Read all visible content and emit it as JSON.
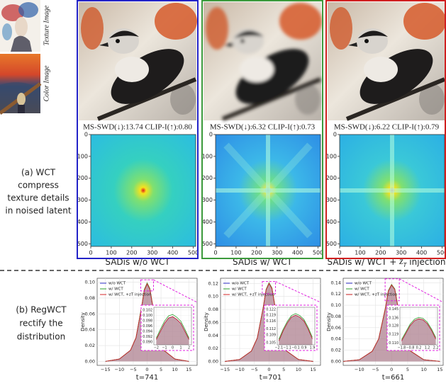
{
  "inputs": {
    "texture_label": "Texture Image",
    "color_label": "Color Image"
  },
  "row_a_label": [
    "(a) WCT",
    "compress",
    "texture details",
    "in noised latent"
  ],
  "row_b_label": [
    "(b) RegWCT",
    "rectify the",
    "distribution"
  ],
  "panels": [
    {
      "caption": "MS-SWD(↓):13.74 CLIP-I(↑):0.80",
      "border": "#2323c8",
      "xlim": [
        0,
        512
      ],
      "ylim": [
        512,
        0
      ],
      "xticks": [
        0,
        100,
        200,
        300,
        400,
        500
      ],
      "yticks": [
        0,
        100,
        200,
        300,
        400,
        500
      ],
      "xlabel": [
        "SADis w/o WCT"
      ]
    },
    {
      "caption": "MS-SWD(↓):6.32 CLIP-I(↑):0.73",
      "border": "#3c9a3c",
      "xlim": [
        0,
        512
      ],
      "ylim": [
        512,
        0
      ],
      "xticks": [
        0,
        100,
        200,
        300,
        400,
        500
      ],
      "yticks": [
        0,
        100,
        200,
        300,
        400,
        500
      ],
      "xlabel": [
        "SADis w/ WCT"
      ]
    },
    {
      "caption": "MS-SWD(↓):6.22 CLIP-I(↑):0.79",
      "border": "#d02020",
      "xlim": [
        0,
        512
      ],
      "ylim": [
        512,
        0
      ],
      "xticks": [
        0,
        100,
        200,
        300,
        400,
        500
      ],
      "yticks": [
        0,
        100,
        200,
        300,
        400,
        500
      ],
      "xlabel": [
        "SADis w/ WCT + ",
        "z",
        "T",
        " injection"
      ]
    }
  ],
  "chart_data": [
    {
      "type": "line",
      "xlabel": "t=741",
      "ylabel": "Density",
      "x": [
        -15,
        -10,
        -6,
        -4,
        -2,
        -1,
        0,
        1,
        2,
        4,
        6,
        10,
        15
      ],
      "xlim": [
        -18,
        18
      ],
      "ylim": [
        -0.005,
        0.105
      ],
      "xticks": [
        {
          "value": -15,
          "label": "−15"
        },
        {
          "value": -10,
          "label": "−10"
        },
        {
          "value": -5,
          "label": "−5"
        },
        0,
        5,
        10,
        15
      ],
      "yticks": [
        {
          "value": 0,
          "label": "0.00"
        },
        0.02,
        0.04,
        0.06,
        0.08,
        {
          "value": 0.1,
          "label": "0.10"
        }
      ],
      "grid": true,
      "series": [
        {
          "name": "w/o WCT",
          "color": "#3030c8",
          "values": [
            0,
            0.003,
            0.014,
            0.03,
            0.068,
            0.09,
            0.098,
            0.091,
            0.07,
            0.032,
            0.014,
            0.003,
            0
          ]
        },
        {
          "name": "w/ WCT",
          "color": "#2ca02c",
          "values": [
            0,
            0.003,
            0.014,
            0.03,
            0.069,
            0.091,
            0.099,
            0.092,
            0.071,
            0.032,
            0.014,
            0.003,
            0
          ]
        },
        {
          "name": "w/ WCT, +zT injection",
          "color": "#d62728",
          "values": [
            0,
            0.003,
            0.014,
            0.03,
            0.068,
            0.09,
            0.098,
            0.091,
            0.07,
            0.032,
            0.014,
            0.003,
            0
          ]
        }
      ],
      "inset": {
        "x": [
          -2,
          -1.5,
          -1,
          -0.5,
          0,
          0.5,
          1,
          1.5,
          2
        ],
        "xlim": [
          -2.3,
          2.3
        ],
        "ylim": [
          0.089,
          0.103
        ],
        "xticks": [
          {
            "value": -2,
            "label": "−2"
          },
          {
            "value": -1,
            "label": "−1"
          },
          0,
          1,
          2
        ],
        "yticks": [
          {
            "value": 0.09,
            "label": "0.090"
          },
          0.092,
          0.094,
          0.096,
          0.098,
          {
            "value": 0.1,
            "label": "0.100"
          },
          0.102
        ],
        "series": [
          {
            "values": [
              0.091,
              0.094,
              0.097,
              0.099,
              0.0995,
              0.0985,
              0.097,
              0.094,
              0.091
            ]
          },
          {
            "values": [
              0.0915,
              0.0948,
              0.0978,
              0.0998,
              0.1003,
              0.0993,
              0.0978,
              0.0948,
              0.0915
            ]
          },
          {
            "values": [
              0.091,
              0.094,
              0.097,
              0.099,
              0.0995,
              0.0985,
              0.097,
              0.094,
              0.091
            ]
          }
        ]
      }
    },
    {
      "type": "line",
      "xlabel": "t=701",
      "ylabel": "Density",
      "x": [
        -15,
        -10,
        -6,
        -4,
        -2,
        -1,
        0,
        1,
        2,
        4,
        6,
        10,
        15
      ],
      "xlim": [
        -16.5,
        17.5
      ],
      "ylim": [
        -0.006,
        0.128
      ],
      "xticks": [
        {
          "value": -15,
          "label": "−15"
        },
        {
          "value": -10,
          "label": "−10"
        },
        {
          "value": -5,
          "label": "−5"
        },
        0,
        5,
        10,
        15
      ],
      "yticks": [
        {
          "value": 0,
          "label": "0.00"
        },
        0.02,
        0.04,
        0.06,
        0.08,
        {
          "value": 0.1,
          "label": "0.10"
        },
        0.12
      ],
      "grid": true,
      "series": [
        {
          "name": "w/o WCT",
          "color": "#3030c8",
          "values": [
            0,
            0.003,
            0.016,
            0.036,
            0.082,
            0.11,
            0.12,
            0.112,
            0.085,
            0.038,
            0.016,
            0.003,
            0
          ]
        },
        {
          "name": "w/ WCT",
          "color": "#2ca02c",
          "values": [
            0,
            0.003,
            0.016,
            0.036,
            0.083,
            0.111,
            0.121,
            0.113,
            0.086,
            0.038,
            0.016,
            0.003,
            0
          ]
        },
        {
          "name": "w/ WCT, +zT injection",
          "color": "#d62728",
          "values": [
            0,
            0.003,
            0.016,
            0.036,
            0.082,
            0.11,
            0.12,
            0.112,
            0.085,
            0.038,
            0.016,
            0.003,
            0
          ]
        }
      ],
      "inset": {
        "x": [
          -2.1,
          -1.6,
          -1.1,
          -0.6,
          -0.1,
          0.4,
          0.9,
          1.4,
          1.9
        ],
        "xlim": [
          -2.3,
          2.2
        ],
        "ylim": [
          0.104,
          0.123
        ],
        "xticks": [
          {
            "value": -2.1,
            "label": "−2.1"
          },
          {
            "value": -1.1,
            "label": "−1.1"
          },
          {
            "value": -0.1,
            "label": "−0.1"
          },
          0.9,
          1.9
        ],
        "yticks": [
          0.105,
          0.109,
          0.112,
          0.116,
          0.119,
          0.122
        ],
        "series": [
          {
            "values": [
              0.106,
              0.111,
              0.115,
              0.118,
              0.119,
              0.118,
              0.116,
              0.112,
              0.107
            ]
          },
          {
            "values": [
              0.1068,
              0.1118,
              0.1158,
              0.1188,
              0.1198,
              0.1188,
              0.1168,
              0.1128,
              0.1078
            ]
          },
          {
            "values": [
              0.106,
              0.111,
              0.115,
              0.118,
              0.119,
              0.118,
              0.116,
              0.112,
              0.107
            ]
          }
        ]
      }
    },
    {
      "type": "line",
      "xlabel": "t=661",
      "ylabel": "Density",
      "x": [
        -15,
        -10,
        -6,
        -4,
        -2,
        -1,
        0,
        1,
        2,
        4,
        6,
        10,
        15
      ],
      "xlim": [
        -15,
        16
      ],
      "ylim": [
        -0.007,
        0.148
      ],
      "xticks": [
        {
          "value": -10,
          "label": "−10"
        },
        {
          "value": -5,
          "label": "−5"
        },
        0,
        5,
        10,
        15
      ],
      "yticks": [
        {
          "value": 0,
          "label": "0.00"
        },
        0.02,
        0.04,
        0.06,
        0.08,
        {
          "value": 0.1,
          "label": "0.10"
        },
        0.12,
        0.14
      ],
      "grid": true,
      "series": [
        {
          "name": "w/o WCT",
          "color": "#3030c8",
          "values": [
            0,
            0.003,
            0.018,
            0.04,
            0.092,
            0.125,
            0.136,
            0.128,
            0.096,
            0.042,
            0.018,
            0.003,
            0
          ]
        },
        {
          "name": "w/ WCT",
          "color": "#2ca02c",
          "values": [
            0,
            0.003,
            0.018,
            0.04,
            0.093,
            0.126,
            0.137,
            0.129,
            0.097,
            0.042,
            0.018,
            0.003,
            0
          ]
        },
        {
          "name": "w/ WCT, +zT injection",
          "color": "#d62728",
          "values": [
            0,
            0.003,
            0.018,
            0.04,
            0.092,
            0.125,
            0.136,
            0.128,
            0.096,
            0.042,
            0.018,
            0.003,
            0
          ]
        }
      ],
      "inset": {
        "x": [
          -1.8,
          -1.3,
          -0.8,
          -0.3,
          0.2,
          0.7,
          1.2,
          1.7,
          2.2
        ],
        "xlim": [
          -2.0,
          2.4
        ],
        "ylim": [
          0.108,
          0.147
        ],
        "xticks": [
          {
            "value": -1.8,
            "label": "−1.8"
          },
          {
            "value": -0.8,
            "label": "−0.8"
          },
          0.2,
          1.2,
          2.2
        ],
        "yticks": [
          {
            "value": 0.11,
            "label": "0.110"
          },
          0.119,
          0.128,
          0.136,
          0.145
        ],
        "series": [
          {
            "values": [
              0.112,
              0.12,
              0.128,
              0.133,
              0.135,
              0.134,
              0.13,
              0.123,
              0.114
            ]
          },
          {
            "values": [
              0.1135,
              0.1215,
              0.1295,
              0.1345,
              0.1365,
              0.1355,
              0.1315,
              0.1245,
              0.1155
            ]
          },
          {
            "values": [
              0.112,
              0.12,
              0.128,
              0.133,
              0.135,
              0.134,
              0.13,
              0.123,
              0.114
            ]
          }
        ]
      }
    }
  ]
}
